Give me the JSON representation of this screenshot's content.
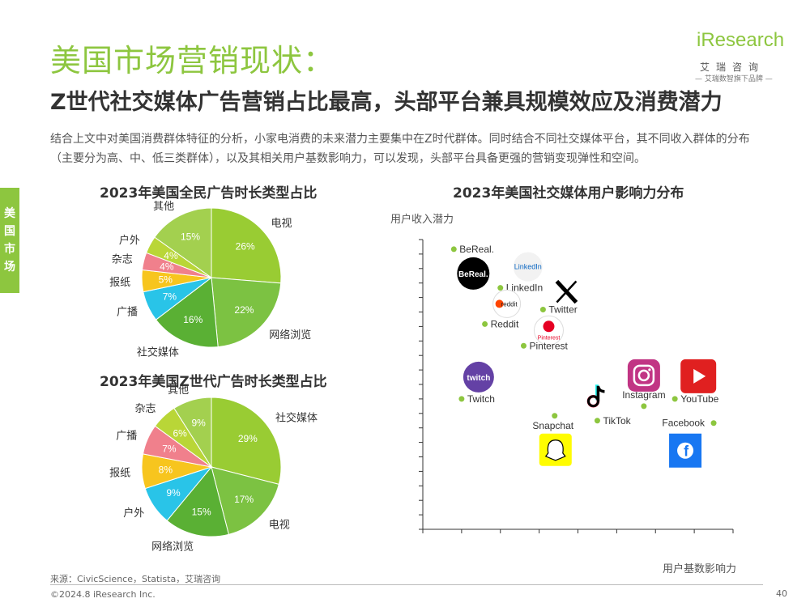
{
  "header": {
    "title": "美国市场营销现状：",
    "subtitle": "Z世代社交媒体广告营销占比最高，头部平台兼具规模效应及消费潜力",
    "description": "结合上文中对美国消费群体特征的分析，小家电消费的未来潜力主要集中在Z时代群体。同时结合不同社交媒体平台，其不同收入群体的分布（主要分为高、中、低三类群体），以及其相关用户基数影响力，可以发现，头部平台具备更强的营销变现弹性和空间。"
  },
  "logo": {
    "word": "iResearch",
    "cn": "艾瑞咨询",
    "slogan": "— 艾瑞数智旗下品牌 —"
  },
  "side_tab": "美国市场",
  "colors": {
    "accent": "#8dc63f",
    "point": "#8dc63f"
  },
  "chart_data": [
    {
      "type": "pie",
      "title": "2023年美国全民广告时长类型占比",
      "slices": [
        {
          "label": "电视",
          "value": 26,
          "value_label": "26%",
          "color": "#99cc33"
        },
        {
          "label": "网络浏览",
          "value": 22,
          "value_label": "22%",
          "color": "#7cc242"
        },
        {
          "label": "社交媒体",
          "value": 16,
          "value_label": "16%",
          "color": "#5ab034"
        },
        {
          "label": "广播",
          "value": 7,
          "value_label": "7%",
          "color": "#29c4e8"
        },
        {
          "label": "报纸",
          "value": 5,
          "value_label": "5%",
          "color": "#f7c51e"
        },
        {
          "label": "杂志",
          "value": 4,
          "value_label": "4%",
          "color": "#f0808c"
        },
        {
          "label": "户外",
          "value": 4,
          "value_label": "4%",
          "color": "#b9d637"
        },
        {
          "label": "其他",
          "value": 15,
          "value_label": "15%",
          "color": "#a3d04f"
        }
      ]
    },
    {
      "type": "pie",
      "title": "2023年美国Z世代广告时长类型占比",
      "slices": [
        {
          "label": "社交媒体",
          "value": 29,
          "value_label": "29%",
          "color": "#99cc33"
        },
        {
          "label": "电视",
          "value": 17,
          "value_label": "17%",
          "color": "#7cc242"
        },
        {
          "label": "网络浏览",
          "value": 15,
          "value_label": "15%",
          "color": "#5ab034"
        },
        {
          "label": "户外",
          "value": 9,
          "value_label": "9%",
          "color": "#29c4e8"
        },
        {
          "label": "报纸",
          "value": 8,
          "value_label": "8%",
          "color": "#f7c51e"
        },
        {
          "label": "广播",
          "value": 7,
          "value_label": "7%",
          "color": "#f0808c"
        },
        {
          "label": "杂志",
          "value": 6,
          "value_label": "6%",
          "color": "#b9d637"
        },
        {
          "label": "其他",
          "value": 9,
          "value_label": "9%",
          "color": "#a3d04f"
        }
      ]
    },
    {
      "type": "scatter",
      "title": "2023年美国社交媒体用户影响力分布",
      "xlabel": "用户基数影响力",
      "ylabel": "用户收入潜力",
      "xlim": [
        0,
        8
      ],
      "ylim": [
        0,
        12
      ],
      "x_ticks": 8,
      "y_ticks": 20,
      "points": [
        {
          "name": "BeReal.",
          "x": 0.8,
          "y": 11.6,
          "icon": "bereal-logo-icon"
        },
        {
          "name": "LinkedIn",
          "x": 2.0,
          "y": 10.0,
          "icon": "linkedin-logo-icon"
        },
        {
          "name": "Twitter",
          "x": 3.1,
          "y": 9.1,
          "icon": "x-logo-icon"
        },
        {
          "name": "Reddit",
          "x": 1.6,
          "y": 8.5,
          "icon": "reddit-logo-icon"
        },
        {
          "name": "Pinterest",
          "x": 2.6,
          "y": 7.6,
          "icon": "pinterest-logo-icon"
        },
        {
          "name": "Twitch",
          "x": 1.0,
          "y": 5.4,
          "icon": "twitch-logo-icon"
        },
        {
          "name": "Instagram",
          "x": 5.7,
          "y": 5.1,
          "icon": "instagram-logo-icon"
        },
        {
          "name": "YouTube",
          "x": 6.5,
          "y": 5.4,
          "icon": "youtube-logo-icon"
        },
        {
          "name": "Snapchat",
          "x": 3.4,
          "y": 4.7,
          "icon": "snapchat-logo-icon"
        },
        {
          "name": "TikTok",
          "x": 4.5,
          "y": 4.5,
          "icon": "tiktok-logo-icon"
        },
        {
          "name": "Facebook",
          "x": 7.5,
          "y": 4.4,
          "icon": "facebook-logo-icon"
        }
      ]
    }
  ],
  "footer": {
    "source": "来源：CivicScience，Statista，艾瑞咨询",
    "copyright": "©2024.8 iResearch Inc.",
    "page": "40"
  }
}
